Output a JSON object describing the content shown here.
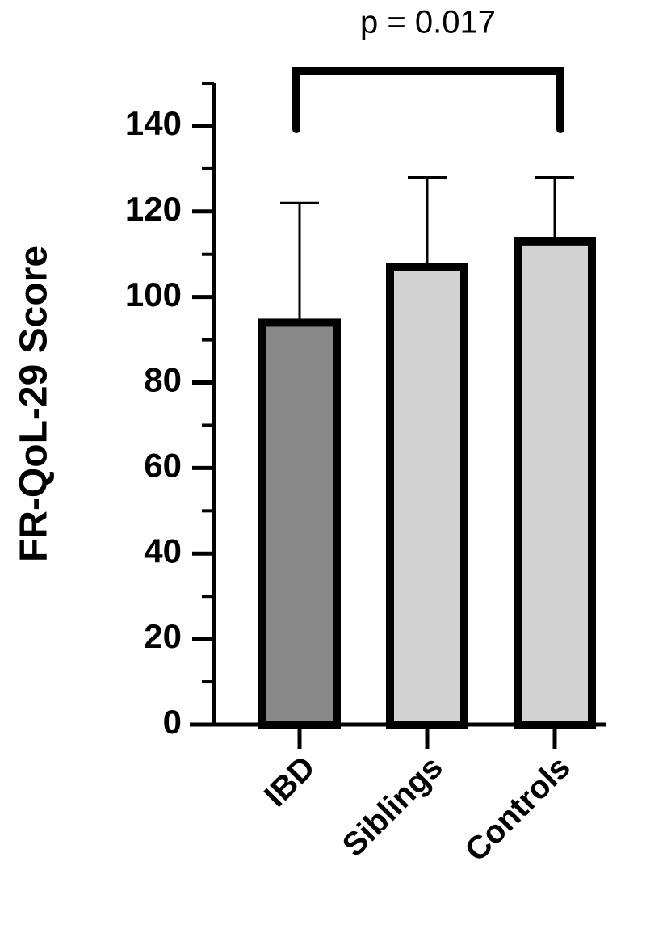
{
  "chart_data": {
    "type": "bar",
    "ylabel": "FR-QoL-29 Score",
    "categories": [
      "IBD",
      "Siblings",
      "Controls"
    ],
    "values": [
      94,
      107,
      113
    ],
    "errors": [
      28,
      21,
      15
    ],
    "colors": [
      "#888888",
      "#d3d3d3",
      "#d3d3d3"
    ],
    "ylim": [
      0,
      150
    ],
    "yticks": [
      0,
      20,
      40,
      60,
      80,
      100,
      120,
      140
    ],
    "annotation": "p = 0.017"
  }
}
